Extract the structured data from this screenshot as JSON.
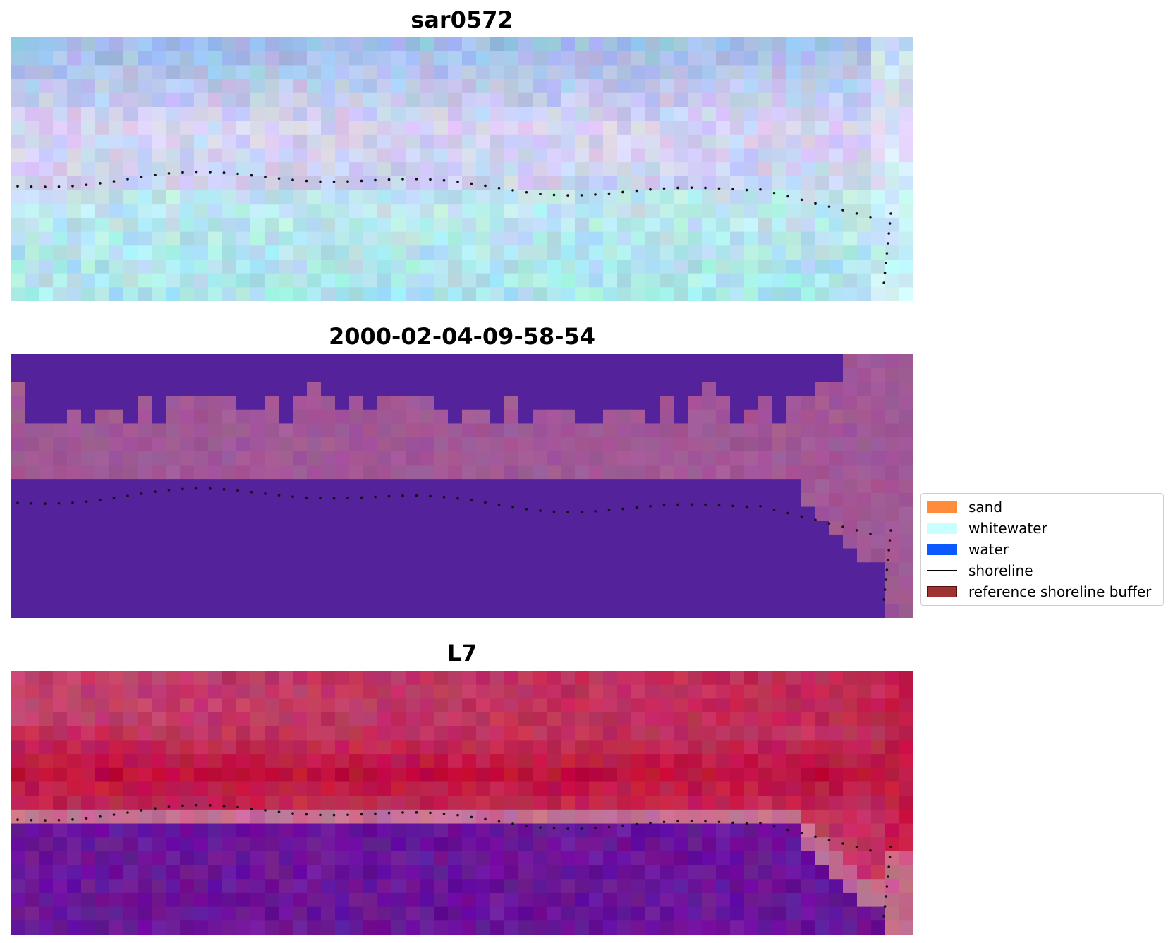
{
  "panels": [
    {
      "title": "sar0572",
      "style": "sar"
    },
    {
      "title": "2000-02-04-09-58-54",
      "style": "classified"
    },
    {
      "title": "L7",
      "style": "false_color"
    }
  ],
  "legend": {
    "items": [
      {
        "label": "sand",
        "kind": "patch",
        "color": "#ff8c3a"
      },
      {
        "label": "whitewater",
        "kind": "patch",
        "color": "#c8ffff"
      },
      {
        "label": "water",
        "kind": "patch",
        "color": "#0a5aff"
      },
      {
        "label": "shoreline",
        "kind": "line",
        "color": "#000000"
      },
      {
        "label": "reference shoreline buffer",
        "kind": "patch",
        "color": "#9e3333"
      }
    ]
  },
  "colors": {
    "classified_dark": "#54229a",
    "classified_light": "#a15896",
    "l7_red": "#c0103c",
    "l7_pink": "#c2517e",
    "l7_purple": "#6a1599"
  }
}
